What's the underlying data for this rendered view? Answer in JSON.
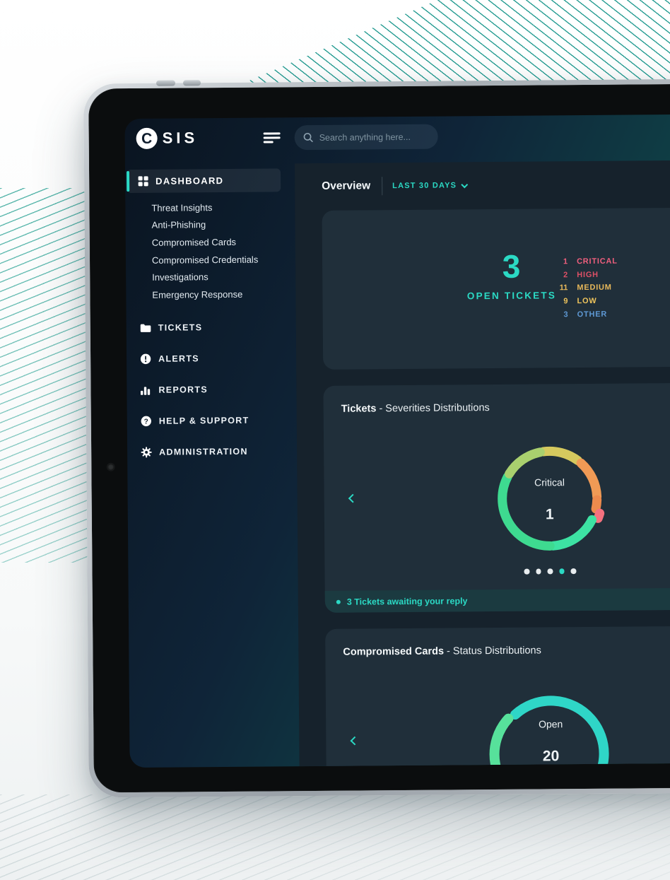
{
  "colors": {
    "accent": "#2bd9c4",
    "dot_active": "#2bd9c4",
    "dot_inactive": "#e8edef"
  },
  "logo": {
    "circle_letter": "C",
    "text": "SIS"
  },
  "header": {
    "search_placeholder": "Search anything here..."
  },
  "sidebar": {
    "dashboard_label": "DASHBOARD",
    "submenu": [
      "Threat Insights",
      "Anti-Phishing",
      "Compromised Cards",
      "Compromised Credentials",
      "Investigations",
      "Emergency Response"
    ],
    "sections": [
      {
        "label": "TICKETS",
        "icon": "folder-icon"
      },
      {
        "label": "ALERTS",
        "icon": "alert-icon"
      },
      {
        "label": "REPORTS",
        "icon": "bar-chart-icon"
      },
      {
        "label": "HELP & SUPPORT",
        "icon": "help-icon"
      },
      {
        "label": "ADMINISTRATION",
        "icon": "gear-icon"
      }
    ]
  },
  "overview": {
    "title": "Overview",
    "range_label": "LAST 30 DAYS"
  },
  "open_tickets": {
    "count": "3",
    "label": "OPEN TICKETS",
    "legend": [
      {
        "count": "1",
        "label": "CRITICAL",
        "color": "#ef5f7d"
      },
      {
        "count": "2",
        "label": "HIGH",
        "color": "#dd5066"
      },
      {
        "count": "11",
        "label": "MEDIUM",
        "color": "#e7b85a"
      },
      {
        "count": "9",
        "label": "LOW",
        "color": "#eec45c"
      },
      {
        "count": "3",
        "label": "OTHER",
        "color": "#5e98d3"
      }
    ]
  },
  "severities_card": {
    "title_bold": "Tickets",
    "title_rest": " - Severities Distributions",
    "center_label": "Critical",
    "center_value": "1",
    "chart_data": {
      "type": "donut",
      "selected": {
        "label": "Critical",
        "value": 1
      },
      "segments": [
        {
          "from": 353,
          "to": 397,
          "color": "#d5c95e"
        },
        {
          "from": 42,
          "to": 88,
          "color": "#f09a55"
        },
        {
          "from": 92,
          "to": 103,
          "color": "#ed8a4d"
        },
        {
          "from": 106.5,
          "to": 113,
          "color": "#f4717f",
          "offset": 7,
          "selected": true
        },
        {
          "from": 117,
          "to": 176,
          "color": "#3de2a3"
        },
        {
          "from": 180,
          "to": 298,
          "color": "#3eda90"
        },
        {
          "from": 302,
          "to": 349,
          "color": "#a9d06e"
        }
      ]
    },
    "dots": {
      "total": 5,
      "active": 4
    },
    "banner": {
      "text": "3 Tickets awaiting your reply"
    }
  },
  "status_card": {
    "title_bold": "Compromised Cards",
    "title_rest": " - Status Distributions",
    "center_label": "Open",
    "center_value": "20",
    "chart_data": {
      "type": "donut",
      "selected": {
        "label": "Open",
        "value": 20
      },
      "segments": [
        {
          "from": 318,
          "to": 500,
          "color": "#2fd6c7"
        },
        {
          "from": 144,
          "to": 167,
          "color": "#54d977"
        },
        {
          "from": 207,
          "to": 313,
          "color": "#57e19b",
          "offset": 5,
          "selected": true
        }
      ]
    }
  }
}
